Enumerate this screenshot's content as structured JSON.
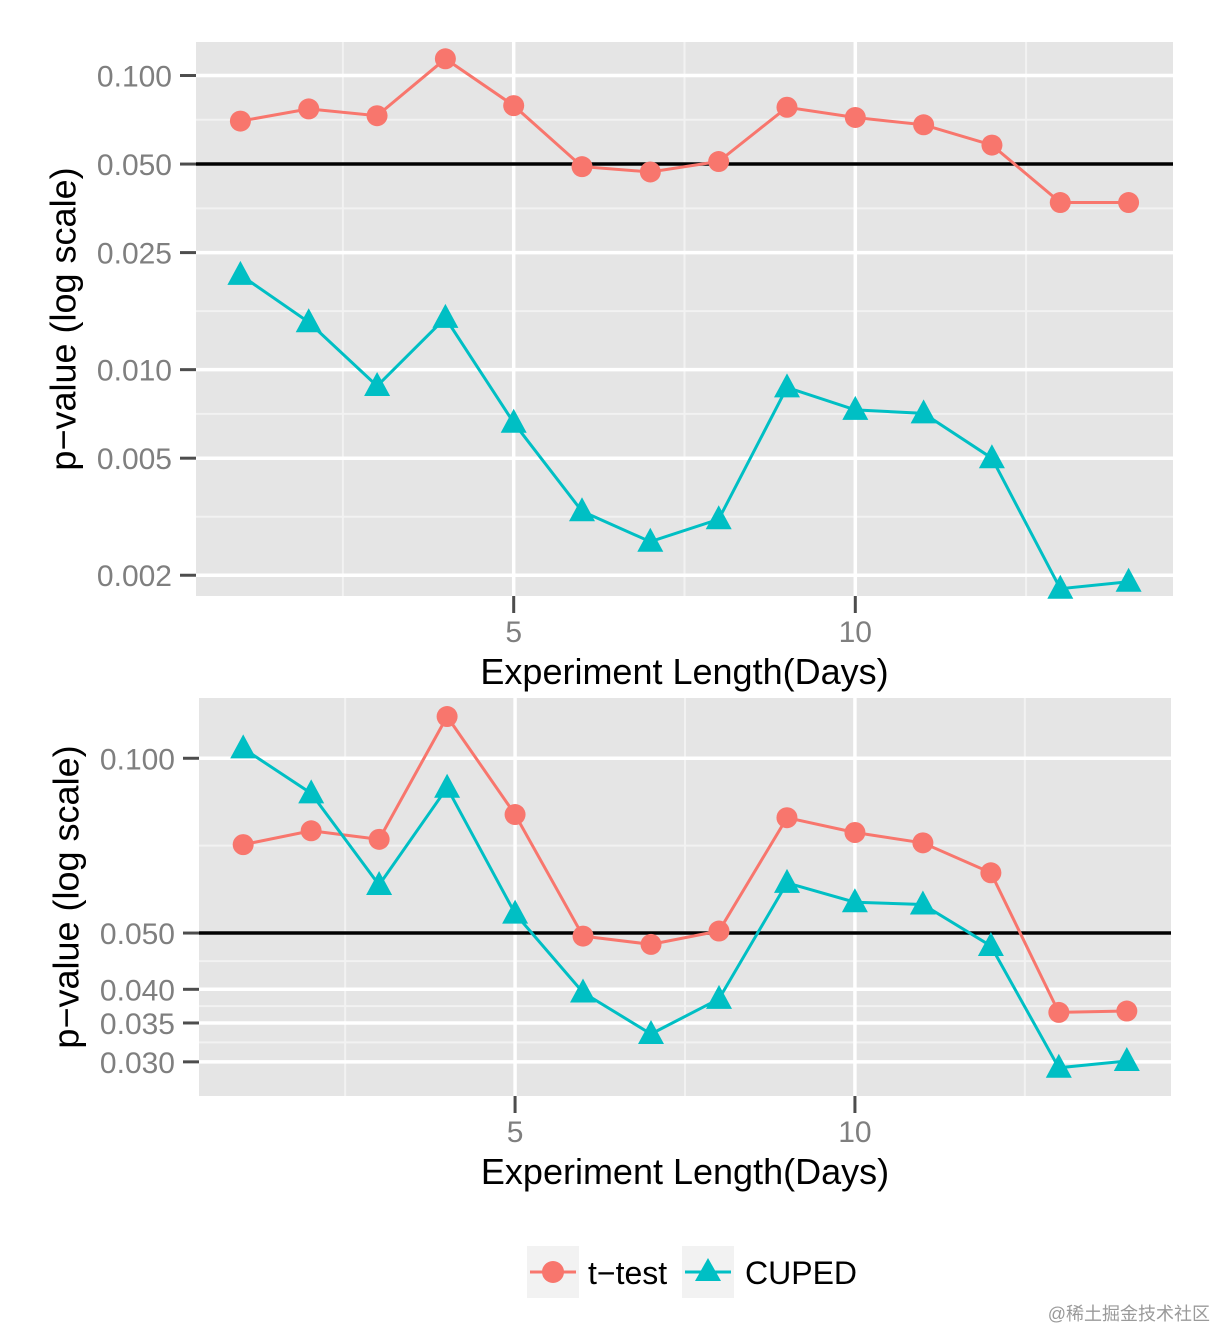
{
  "colors": {
    "t_test": "#F8766D",
    "cuped": "#00BFC4",
    "panel_bg": "#E5E5E5",
    "grid_major": "#FFFFFF",
    "grid_minor": "#F2F2F2",
    "reference_line": "#000000"
  },
  "legend": {
    "position": "bottom",
    "items": [
      {
        "label": "t−test",
        "icon": "red-circle-line-icon"
      },
      {
        "label": "CUPED",
        "icon": "cyan-triangle-line-icon"
      }
    ]
  },
  "watermark": "@稀土掘金技术社区",
  "chart_data": [
    {
      "type": "line",
      "xlabel": "Experiment Length(Days)",
      "ylabel": "p−value (log scale)",
      "y_scale": "log",
      "xlim": [
        0.35,
        14.65
      ],
      "ylim": [
        0.0017,
        0.13
      ],
      "x_ticks": [
        5,
        10
      ],
      "x_tick_labels": [
        "5",
        "10"
      ],
      "y_ticks": [
        0.1,
        0.05,
        0.025,
        0.01,
        0.005,
        0.002
      ],
      "y_tick_labels": [
        "0.100",
        "0.050",
        "0.025",
        "0.010",
        "0.005",
        "0.002"
      ],
      "reference_line": 0.05,
      "grid": true,
      "x": [
        1,
        2,
        3,
        4,
        5,
        6,
        7,
        8,
        9,
        10,
        11,
        12,
        13,
        14
      ],
      "series": [
        {
          "name": "t−test",
          "marker": "circle",
          "values": [
            0.07,
            0.077,
            0.073,
            0.114,
            0.079,
            0.049,
            0.047,
            0.051,
            0.078,
            0.072,
            0.068,
            0.058,
            0.037,
            0.037
          ]
        },
        {
          "name": "CUPED",
          "marker": "triangle",
          "values": [
            0.021,
            0.0145,
            0.0088,
            0.015,
            0.0066,
            0.0033,
            0.0026,
            0.0031,
            0.0087,
            0.0073,
            0.0071,
            0.005,
            0.0018,
            0.0019
          ]
        }
      ]
    },
    {
      "type": "line",
      "xlabel": "Experiment Length(Days)",
      "ylabel": "p−value (log scale)",
      "y_scale": "log",
      "xlim": [
        0.35,
        14.65
      ],
      "ylim": [
        0.0262,
        0.127
      ],
      "x_ticks": [
        5,
        10
      ],
      "x_tick_labels": [
        "5",
        "10"
      ],
      "y_ticks": [
        0.1,
        0.05,
        0.04,
        0.035,
        0.03
      ],
      "y_tick_labels": [
        "0.100",
        "0.050",
        "0.040",
        "0.035",
        "0.030"
      ],
      "reference_line": 0.05,
      "grid": true,
      "x": [
        1,
        2,
        3,
        4,
        5,
        6,
        7,
        8,
        9,
        10,
        11,
        12,
        13,
        14
      ],
      "series": [
        {
          "name": "t−test",
          "marker": "circle",
          "values": [
            0.071,
            0.075,
            0.0725,
            0.118,
            0.08,
            0.0494,
            0.0478,
            0.0504,
            0.079,
            0.0745,
            0.0715,
            0.0635,
            0.0365,
            0.0367
          ]
        },
        {
          "name": "CUPED",
          "marker": "triangle",
          "values": [
            0.104,
            0.087,
            0.0605,
            0.089,
            0.054,
            0.0395,
            0.0335,
            0.0385,
            0.061,
            0.0565,
            0.056,
            0.0475,
            0.0293,
            0.0301
          ]
        }
      ]
    }
  ]
}
